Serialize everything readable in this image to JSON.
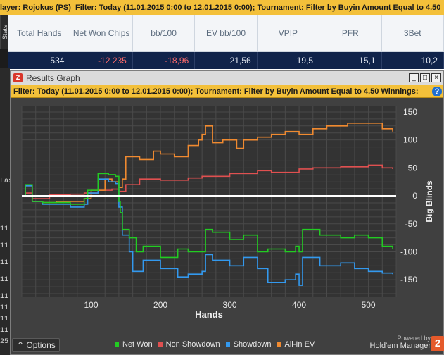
{
  "top_filter": {
    "player_prefix": "layer:",
    "player_name": "Rojokus (PS)",
    "filter_label": "Filter:",
    "filter_text": "Today (11.01.2015 0:00 to 12.01.2015 0:00); Tournament: Filter by Buyin Amount Equal to 4.50"
  },
  "stats_tab_label": "Stats",
  "stats": {
    "headers": [
      "Total Hands",
      "Net Won Chips",
      "bb/100",
      "EV bb/100",
      "VPIP",
      "PFR",
      "3Bet"
    ],
    "values": [
      "534",
      "-12 235",
      "-18,96",
      "21,56",
      "19,5",
      "15,1",
      "10,2"
    ]
  },
  "left_fragments": [
    "Las",
    "11",
    "11",
    "11",
    "11",
    "11",
    "11",
    "11",
    "11",
    "25"
  ],
  "window": {
    "logo": "2",
    "title": "Results Graph",
    "controls": [
      "_",
      "□",
      "×"
    ],
    "filter_text": "Filter: Today (11.01.2015 0:00 to 12.01.2015 0:00); Tournament: Filter by Buyin Amount Equal to 4.50  Winnings:",
    "help": "?"
  },
  "options_label": "Options",
  "options_icon": "chevron-up-icon",
  "powered": {
    "line1": "Powered by",
    "line2": "Hold'em Manager",
    "badge": "2"
  },
  "chart_data": {
    "type": "line",
    "xlabel": "Hands",
    "ylabel": "Big Blinds",
    "xlim": [
      0,
      540
    ],
    "ylim": [
      -180,
      160
    ],
    "x_ticks": [
      100,
      200,
      300,
      400,
      500
    ],
    "y_ticks": [
      150,
      100,
      50,
      0,
      -50,
      -100,
      -150
    ],
    "grid": true,
    "legend_position": "bottom",
    "series": [
      {
        "name": "Net Won",
        "color": "#22cc22",
        "x": [
          0,
          5,
          15,
          30,
          50,
          70,
          90,
          95,
          110,
          120,
          125,
          135,
          140,
          142,
          145,
          155,
          165,
          175,
          200,
          225,
          240,
          260,
          265,
          275,
          300,
          320,
          340,
          355,
          380,
          395,
          400,
          405,
          430,
          460,
          480,
          500,
          520,
          535
        ],
        "y": [
          0,
          20,
          -10,
          -12,
          -12,
          -15,
          -5,
          10,
          40,
          40,
          38,
          35,
          -10,
          -30,
          -60,
          -75,
          -100,
          -90,
          -110,
          -95,
          -100,
          -100,
          -60,
          -65,
          -78,
          -70,
          -100,
          -95,
          -100,
          -90,
          -100,
          -60,
          -70,
          -75,
          -70,
          -75,
          -90,
          -95
        ]
      },
      {
        "name": "Non Showdown",
        "color": "#e05050",
        "x": [
          0,
          5,
          15,
          40,
          70,
          90,
          110,
          130,
          140,
          150,
          170,
          200,
          240,
          260,
          300,
          340,
          360,
          400,
          420,
          460,
          500,
          520,
          535
        ],
        "y": [
          0,
          5,
          -5,
          2,
          3,
          5,
          10,
          12,
          8,
          20,
          30,
          28,
          32,
          35,
          40,
          45,
          42,
          48,
          50,
          52,
          55,
          50,
          48
        ]
      },
      {
        "name": "Showdown",
        "color": "#3399ee",
        "x": [
          0,
          5,
          15,
          30,
          50,
          70,
          90,
          95,
          110,
          120,
          125,
          135,
          140,
          145,
          155,
          160,
          175,
          200,
          225,
          240,
          260,
          265,
          275,
          300,
          320,
          340,
          355,
          380,
          395,
          400,
          405,
          430,
          460,
          480,
          500,
          520,
          535
        ],
        "y": [
          0,
          18,
          -10,
          -15,
          -15,
          -20,
          -15,
          5,
          30,
          30,
          25,
          22,
          -20,
          -70,
          -100,
          -135,
          -115,
          -130,
          -145,
          -140,
          -135,
          -105,
          -115,
          -125,
          -110,
          -130,
          -155,
          -150,
          -140,
          -160,
          -110,
          -125,
          -120,
          -130,
          -135,
          -138,
          -140
        ]
      },
      {
        "name": "All-In EV",
        "color": "#f08a30",
        "x": [
          0,
          5,
          15,
          30,
          50,
          70,
          90,
          100,
          120,
          130,
          140,
          145,
          150,
          170,
          190,
          200,
          220,
          240,
          255,
          260,
          265,
          275,
          290,
          310,
          320,
          340,
          360,
          380,
          400,
          420,
          440,
          470,
          500,
          520,
          535
        ],
        "y": [
          0,
          18,
          -10,
          -12,
          -10,
          -10,
          -5,
          10,
          30,
          25,
          15,
          30,
          70,
          65,
          80,
          75,
          70,
          90,
          100,
          110,
          125,
          95,
          100,
          85,
          100,
          105,
          110,
          115,
          110,
          120,
          125,
          130,
          130,
          120,
          115
        ]
      }
    ]
  }
}
